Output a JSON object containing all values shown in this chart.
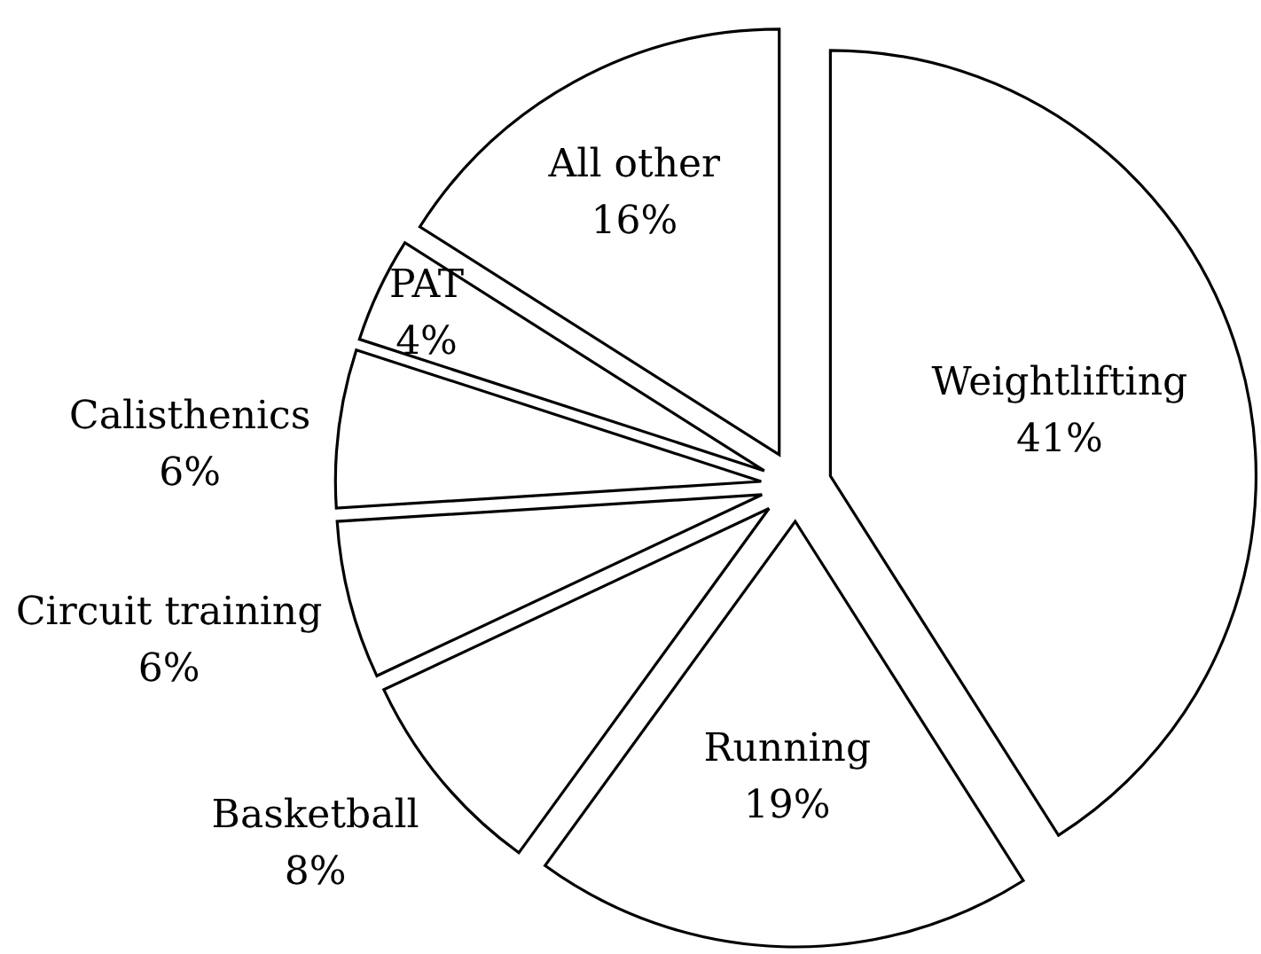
{
  "chart_data": {
    "type": "pie",
    "categories": [
      "Weightlifting",
      "Running",
      "Basketball",
      "Circuit training",
      "Calisthenics",
      "PAT",
      "All other"
    ],
    "values": [
      41,
      19,
      8,
      6,
      6,
      4,
      16
    ],
    "value_labels": [
      "41%",
      "19%",
      "8%",
      "6%",
      "6%",
      "4%",
      "16%"
    ],
    "colors": [
      "#ffffff",
      "#ffffff",
      "#ffffff",
      "#ffffff",
      "#ffffff",
      "#ffffff",
      "#ffffff"
    ]
  }
}
